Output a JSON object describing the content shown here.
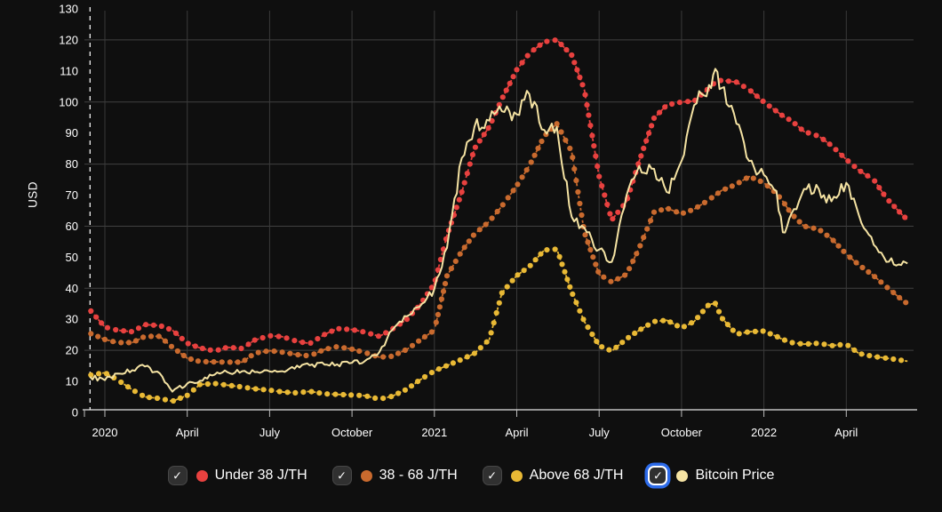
{
  "page": {
    "background": "#0f0f0f"
  },
  "legend": {
    "items": [
      {
        "label": "Under 38 J/TH",
        "color": "#e8413f",
        "checked": true,
        "focused": false
      },
      {
        "label": "38 - 68 J/TH",
        "color": "#c96a2e",
        "checked": true,
        "focused": false
      },
      {
        "label": "Above 68 J/TH",
        "color": "#e9b935",
        "checked": true,
        "focused": false
      },
      {
        "label": "Bitcoin Price",
        "color": "#f5e3a3",
        "checked": true,
        "focused": true
      }
    ]
  },
  "chart_data": {
    "type": "line",
    "title": "",
    "xlabel": "",
    "ylabel": "USD",
    "ylim": [
      0,
      130
    ],
    "y_ticks": [
      0,
      10,
      20,
      30,
      40,
      50,
      60,
      70,
      80,
      90,
      100,
      110,
      120,
      130
    ],
    "grid": true,
    "legend_position": "bottom",
    "start_marker_date": "2019-12-15",
    "x_ticks": [
      {
        "date": "2020-01-01",
        "label": "2020"
      },
      {
        "date": "2020-04-01",
        "label": "April"
      },
      {
        "date": "2020-07-01",
        "label": "July"
      },
      {
        "date": "2020-10-01",
        "label": "October"
      },
      {
        "date": "2021-01-01",
        "label": "2021"
      },
      {
        "date": "2021-04-01",
        "label": "April"
      },
      {
        "date": "2021-07-01",
        "label": "July"
      },
      {
        "date": "2021-10-01",
        "label": "October"
      },
      {
        "date": "2022-01-01",
        "label": "2022"
      },
      {
        "date": "2022-04-01",
        "label": "April"
      }
    ],
    "x": [
      "2019-12-15",
      "2020-01-01",
      "2020-01-15",
      "2020-02-01",
      "2020-02-15",
      "2020-03-01",
      "2020-03-15",
      "2020-04-01",
      "2020-04-15",
      "2020-05-01",
      "2020-05-15",
      "2020-06-01",
      "2020-06-15",
      "2020-07-01",
      "2020-07-15",
      "2020-08-01",
      "2020-08-15",
      "2020-09-01",
      "2020-09-15",
      "2020-10-01",
      "2020-10-15",
      "2020-11-01",
      "2020-11-15",
      "2020-12-01",
      "2020-12-15",
      "2021-01-01",
      "2021-01-15",
      "2021-02-01",
      "2021-02-15",
      "2021-03-01",
      "2021-03-15",
      "2021-04-01",
      "2021-04-15",
      "2021-05-01",
      "2021-05-15",
      "2021-06-01",
      "2021-06-15",
      "2021-07-01",
      "2021-07-15",
      "2021-08-01",
      "2021-08-15",
      "2021-09-01",
      "2021-09-15",
      "2021-10-01",
      "2021-10-15",
      "2021-11-01",
      "2021-11-08",
      "2021-11-15",
      "2021-12-01",
      "2021-12-15",
      "2022-01-01",
      "2022-01-15",
      "2022-01-22",
      "2022-02-01",
      "2022-02-15",
      "2022-03-01",
      "2022-03-15",
      "2022-04-01",
      "2022-04-15",
      "2022-05-01",
      "2022-05-15",
      "2022-06-01",
      "2022-06-08"
    ],
    "series": [
      {
        "name": "Under 38 J/TH",
        "style": "dotted",
        "color": "#e8413f",
        "values": [
          33,
          27.5,
          26.5,
          26,
          28.3,
          28,
          26.5,
          22.3,
          20.8,
          19.8,
          21,
          20.6,
          23.3,
          24.7,
          24.4,
          22.9,
          22.2,
          25.1,
          27,
          26.7,
          25.9,
          24.5,
          26.8,
          30,
          34.5,
          41.5,
          57,
          71,
          85,
          92,
          101,
          110.4,
          115.7,
          119.4,
          120,
          115.1,
          104,
          76,
          62,
          68,
          81,
          94.8,
          99,
          100,
          100.3,
          104.5,
          106.4,
          107,
          106.4,
          104,
          100,
          97,
          95.5,
          94,
          90.5,
          89,
          86,
          81.5,
          78,
          75,
          69,
          64,
          62
        ]
      },
      {
        "name": "38 - 68 J/TH",
        "style": "dotted",
        "color": "#c96a2e",
        "values": [
          25.5,
          23.5,
          22.5,
          22.5,
          24.5,
          24.5,
          21,
          17.5,
          16.4,
          16.3,
          16.2,
          16.2,
          19.1,
          19.9,
          19.4,
          18.6,
          18.2,
          20.3,
          21.2,
          20.4,
          19.3,
          17.8,
          18.1,
          20.3,
          23.2,
          26.5,
          44,
          52,
          57.5,
          61.5,
          66.5,
          73,
          79.5,
          89,
          93,
          84,
          58,
          44.5,
          42,
          44.5,
          53,
          64.5,
          65.8,
          64,
          65.5,
          68.5,
          70,
          71.5,
          73.5,
          76,
          74,
          70.5,
          68,
          64,
          60,
          59,
          56,
          51,
          47.5,
          44,
          40.5,
          36.5,
          35
        ]
      },
      {
        "name": "Above 68 J/TH",
        "style": "dotted",
        "color": "#e9b935",
        "values": [
          12,
          12.8,
          10.5,
          7.3,
          5,
          4.5,
          3.6,
          5.5,
          9,
          9.3,
          8.8,
          8.2,
          7.6,
          7.2,
          6.6,
          6.3,
          6.8,
          6,
          5.8,
          5.6,
          5.4,
          4.3,
          5.2,
          7.5,
          10.4,
          13.4,
          15.1,
          17.1,
          19,
          23.5,
          38.5,
          44.1,
          47,
          52.3,
          52.6,
          38.8,
          29.3,
          21.5,
          19.8,
          23.7,
          26.5,
          29.3,
          29.7,
          27.2,
          29.3,
          34.8,
          35.1,
          30.5,
          25.2,
          26,
          26.2,
          24.5,
          23.5,
          22.5,
          22,
          22.3,
          21.5,
          22,
          19,
          18,
          17.5,
          16.8,
          16.5
        ]
      },
      {
        "name": "Bitcoin Price",
        "style": "solid",
        "color": "#f5e3a3",
        "values": [
          11.5,
          10.4,
          12.5,
          13.6,
          14.8,
          12.6,
          6.7,
          9.3,
          10.2,
          12.2,
          13,
          13.3,
          13,
          13.2,
          13.3,
          15.1,
          15.2,
          15.4,
          15.5,
          16,
          16.5,
          19.5,
          26.5,
          31,
          34,
          39.8,
          53,
          82,
          92,
          94,
          97,
          96,
          102.5,
          91,
          92,
          63,
          59.5,
          52.5,
          48.5,
          70,
          79.4,
          78.5,
          71,
          81,
          99,
          105.5,
          110.7,
          104.5,
          93,
          81,
          76.5,
          71.3,
          58,
          64,
          72,
          72,
          68,
          74,
          63.5,
          54,
          48.5,
          47.5,
          48
        ]
      }
    ]
  }
}
